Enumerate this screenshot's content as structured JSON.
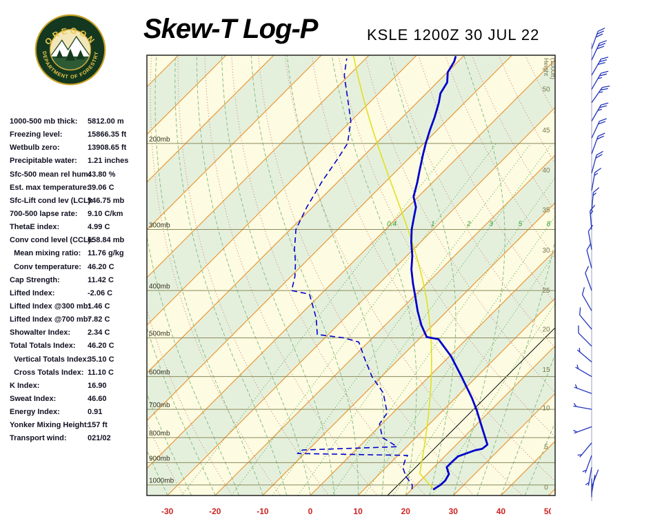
{
  "header": {
    "title": "Skew-T Log-P",
    "station": "KSLE 1200Z 30 JUL 22"
  },
  "logo": {
    "line_top": "OREGON",
    "line_bottom": "DEPARTMENT OF FORESTRY"
  },
  "indices": [
    {
      "label": "1000-500 mb thick:",
      "value": "5812.00 m"
    },
    {
      "label": "Freezing level:",
      "value": "15866.35 ft"
    },
    {
      "label": "Wetbulb zero:",
      "value": "13908.65 ft"
    },
    {
      "label": "Precipitable water:",
      "value": "1.21 inches"
    },
    {
      "label": "Sfc-500 mean rel hum:",
      "value": "43.80 %"
    },
    {
      "label": "Est. max temperature:",
      "value": "39.06 C"
    },
    {
      "label": "Sfc-Lift cond lev (LCL):",
      "value": "946.75 mb"
    },
    {
      "label": "700-500 lapse rate:",
      "value": "9.10 C/km"
    },
    {
      "label": "ThetaE index:",
      "value": "4.99 C"
    },
    {
      "label": "Conv cond level (CCL):",
      "value": "658.84 mb"
    },
    {
      "label": "  Mean mixing ratio:",
      "value": "11.76 g/kg"
    },
    {
      "label": "  Conv temperature:",
      "value": "46.20 C"
    },
    {
      "label": "Cap Strength:",
      "value": "11.42 C"
    },
    {
      "label": "Lifted Index:",
      "value": "-2.06 C"
    },
    {
      "label": "Lifted Index @300 mb:",
      "value": "1.46 C"
    },
    {
      "label": "Lifted Index @700 mb:",
      "value": "7.82 C"
    },
    {
      "label": "Showalter Index:",
      "value": "2.34 C"
    },
    {
      "label": "Total Totals Index:",
      "value": "46.20 C"
    },
    {
      "label": "  Vertical Totals Index:",
      "value": "35.10 C"
    },
    {
      "label": "  Cross Totals Index:",
      "value": "11.10 C"
    },
    {
      "label": "K Index:",
      "value": "16.90"
    },
    {
      "label": "Sweat Index:",
      "value": "46.60"
    },
    {
      "label": "Energy Index:",
      "value": "0.91"
    },
    {
      "label": "Yonker Mixing Height:",
      "value": "157 ft"
    },
    {
      "label": "Transport wind:",
      "value": "021/02"
    }
  ],
  "chart_data": {
    "type": "skewt-log-p",
    "pressure_axis": {
      "unit": "mb",
      "ticks": [
        200,
        300,
        400,
        500,
        600,
        700,
        800,
        900,
        1000
      ],
      "top_p": 132,
      "bottom_p": 1051
    },
    "temp_axis": {
      "unit": "C",
      "ticks": [
        -30,
        -20,
        -10,
        0,
        10,
        20,
        30,
        40,
        50
      ]
    },
    "height_axis": {
      "label_line1": "Height",
      "label_line2": "(1000ft)",
      "ticks": [
        {
          "kft": "50",
          "p": 155
        },
        {
          "kft": "45",
          "p": 188
        },
        {
          "kft": "40",
          "p": 227
        },
        {
          "kft": "35",
          "p": 274
        },
        {
          "kft": "30",
          "p": 331
        },
        {
          "kft": "25",
          "p": 400
        },
        {
          "kft": "20",
          "p": 481
        },
        {
          "kft": "15",
          "p": 581
        },
        {
          "kft": "10",
          "p": 696
        },
        {
          "kft": "5",
          "p": 836
        },
        {
          "kft": "0",
          "p": 1013
        }
      ]
    },
    "isotherms": {
      "step": 10,
      "highlight_t": 16.2
    },
    "dry_adiabats": {
      "theta_min": -40,
      "theta_max": 150,
      "step": 10
    },
    "moist_adiabats": {
      "t_start_min": -40,
      "t_start_max": 45,
      "step": 5
    },
    "mixing_ratio": {
      "values": [
        0.4,
        1,
        2,
        3,
        5,
        8,
        12,
        20
      ],
      "label_values": [
        "0.4",
        "1",
        "2",
        "3",
        "5",
        "8"
      ],
      "label_p": 300
    },
    "sounding": {
      "temperature": [
        [
          1020,
          24.6
        ],
        [
          1000,
          25.1
        ],
        [
          980,
          25.2
        ],
        [
          950,
          24.6
        ],
        [
          920,
          22.7
        ],
        [
          897,
          22.7
        ],
        [
          874,
          22.8
        ],
        [
          850,
          25.0
        ],
        [
          843,
          26.3
        ],
        [
          827,
          26.5
        ],
        [
          795,
          24.2
        ],
        [
          750,
          20.8
        ],
        [
          705,
          17.2
        ],
        [
          664,
          13.5
        ],
        [
          600,
          6.8
        ],
        [
          545,
          0.3
        ],
        [
          503,
          -5.9
        ],
        [
          498,
          -8.8
        ],
        [
          471,
          -12.4
        ],
        [
          441,
          -16.1
        ],
        [
          413,
          -19.5
        ],
        [
          387,
          -22.9
        ],
        [
          362,
          -26.2
        ],
        [
          340,
          -28.8
        ],
        [
          318,
          -32.0
        ],
        [
          300,
          -34.5
        ],
        [
          284,
          -36.5
        ],
        [
          270,
          -38.3
        ],
        [
          257,
          -41.0
        ],
        [
          241,
          -43.1
        ],
        [
          226,
          -45.4
        ],
        [
          211,
          -47.8
        ],
        [
          200,
          -49.6
        ],
        [
          188,
          -51.5
        ],
        [
          177,
          -53.2
        ],
        [
          165,
          -55.4
        ],
        [
          158,
          -57.0
        ],
        [
          150,
          -57.9
        ],
        [
          143,
          -59.9
        ],
        [
          136,
          -60.8
        ],
        [
          133,
          -61.5
        ]
      ],
      "dewpoint": [
        [
          1020,
          20.0
        ],
        [
          1000,
          19.2
        ],
        [
          960,
          16.0
        ],
        [
          920,
          13.5
        ],
        [
          890,
          12.5
        ],
        [
          870,
          12.0
        ],
        [
          862,
          -11.5
        ],
        [
          848,
          -11.2
        ],
        [
          835,
          8.0
        ],
        [
          800,
          3.0
        ],
        [
          750,
          -0.5
        ],
        [
          712,
          -1.2
        ],
        [
          648,
          -6.2
        ],
        [
          600,
          -12.0
        ],
        [
          553,
          -17.1
        ],
        [
          510,
          -22.0
        ],
        [
          500,
          -26.0
        ],
        [
          492,
          -32.3
        ],
        [
          456,
          -35.9
        ],
        [
          428,
          -39.5
        ],
        [
          407,
          -42.4
        ],
        [
          400,
          -46.9
        ],
        [
          374,
          -49.2
        ],
        [
          351,
          -51.9
        ],
        [
          329,
          -55.0
        ],
        [
          308,
          -57.7
        ],
        [
          300,
          -58.8
        ],
        [
          270,
          -61.2
        ],
        [
          239,
          -63.4
        ],
        [
          216,
          -64.8
        ],
        [
          200,
          -66.0
        ],
        [
          180,
          -70.0
        ],
        [
          160,
          -76.0
        ],
        [
          145,
          -81.0
        ],
        [
          134,
          -84.0
        ]
      ],
      "parcel": {
        "surface_p": 1020,
        "surface_t": 24.6,
        "lcl_p": 946.75
      }
    },
    "wind_barbs": [
      {
        "p": 128,
        "dir": 20,
        "spd": 30
      },
      {
        "p": 135,
        "dir": 25,
        "spd": 30
      },
      {
        "p": 145,
        "dir": 30,
        "spd": 30
      },
      {
        "p": 155,
        "dir": 30,
        "spd": 25
      },
      {
        "p": 165,
        "dir": 35,
        "spd": 25
      },
      {
        "p": 180,
        "dir": 30,
        "spd": 25
      },
      {
        "p": 195,
        "dir": 25,
        "spd": 20
      },
      {
        "p": 210,
        "dir": 20,
        "spd": 20
      },
      {
        "p": 230,
        "dir": 15,
        "spd": 20
      },
      {
        "p": 250,
        "dir": 10,
        "spd": 15
      },
      {
        "p": 275,
        "dir": 5,
        "spd": 15
      },
      {
        "p": 300,
        "dir": 355,
        "spd": 15
      },
      {
        "p": 330,
        "dir": 350,
        "spd": 10
      },
      {
        "p": 360,
        "dir": 345,
        "spd": 10
      },
      {
        "p": 400,
        "dir": 340,
        "spd": 10
      },
      {
        "p": 440,
        "dir": 330,
        "spd": 10
      },
      {
        "p": 480,
        "dir": 320,
        "spd": 10
      },
      {
        "p": 520,
        "dir": 315,
        "spd": 10
      },
      {
        "p": 560,
        "dir": 310,
        "spd": 5
      },
      {
        "p": 600,
        "dir": 300,
        "spd": 5
      },
      {
        "p": 650,
        "dir": 290,
        "spd": 5
      },
      {
        "p": 700,
        "dir": 280,
        "spd": 5
      },
      {
        "p": 760,
        "dir": 250,
        "spd": 5
      },
      {
        "p": 820,
        "dir": 220,
        "spd": 5
      },
      {
        "p": 870,
        "dir": 200,
        "spd": 5
      },
      {
        "p": 920,
        "dir": 190,
        "spd": 3
      },
      {
        "p": 970,
        "dir": 180,
        "spd": 2
      },
      {
        "p": 1010,
        "dir": 21,
        "spd": 2
      },
      {
        "p": 1040,
        "dir": 10,
        "spd": 2
      }
    ],
    "colors": {
      "band_yellow": "#fdfbe1",
      "band_green": "#e5f0dc",
      "isotherm": "#e8983a",
      "dry_adiabat": "#cc8888",
      "moist_adiabat": "#7cb87c",
      "mixing_ratio": "#2e9e2e",
      "pressure_line": "#8a8a5c",
      "pressure_label": "#33331f",
      "temp_curve": "#0000cc",
      "dewpoint_curve": "#0000cc",
      "parcel_curve": "#e0e020",
      "axis_label_red": "#cc2222",
      "height_label": "#77774d",
      "wind_barb": "#2233bb",
      "barb_axis": "#9aa2c4",
      "frame": "#222222",
      "highlight_line": "#000000"
    }
  }
}
